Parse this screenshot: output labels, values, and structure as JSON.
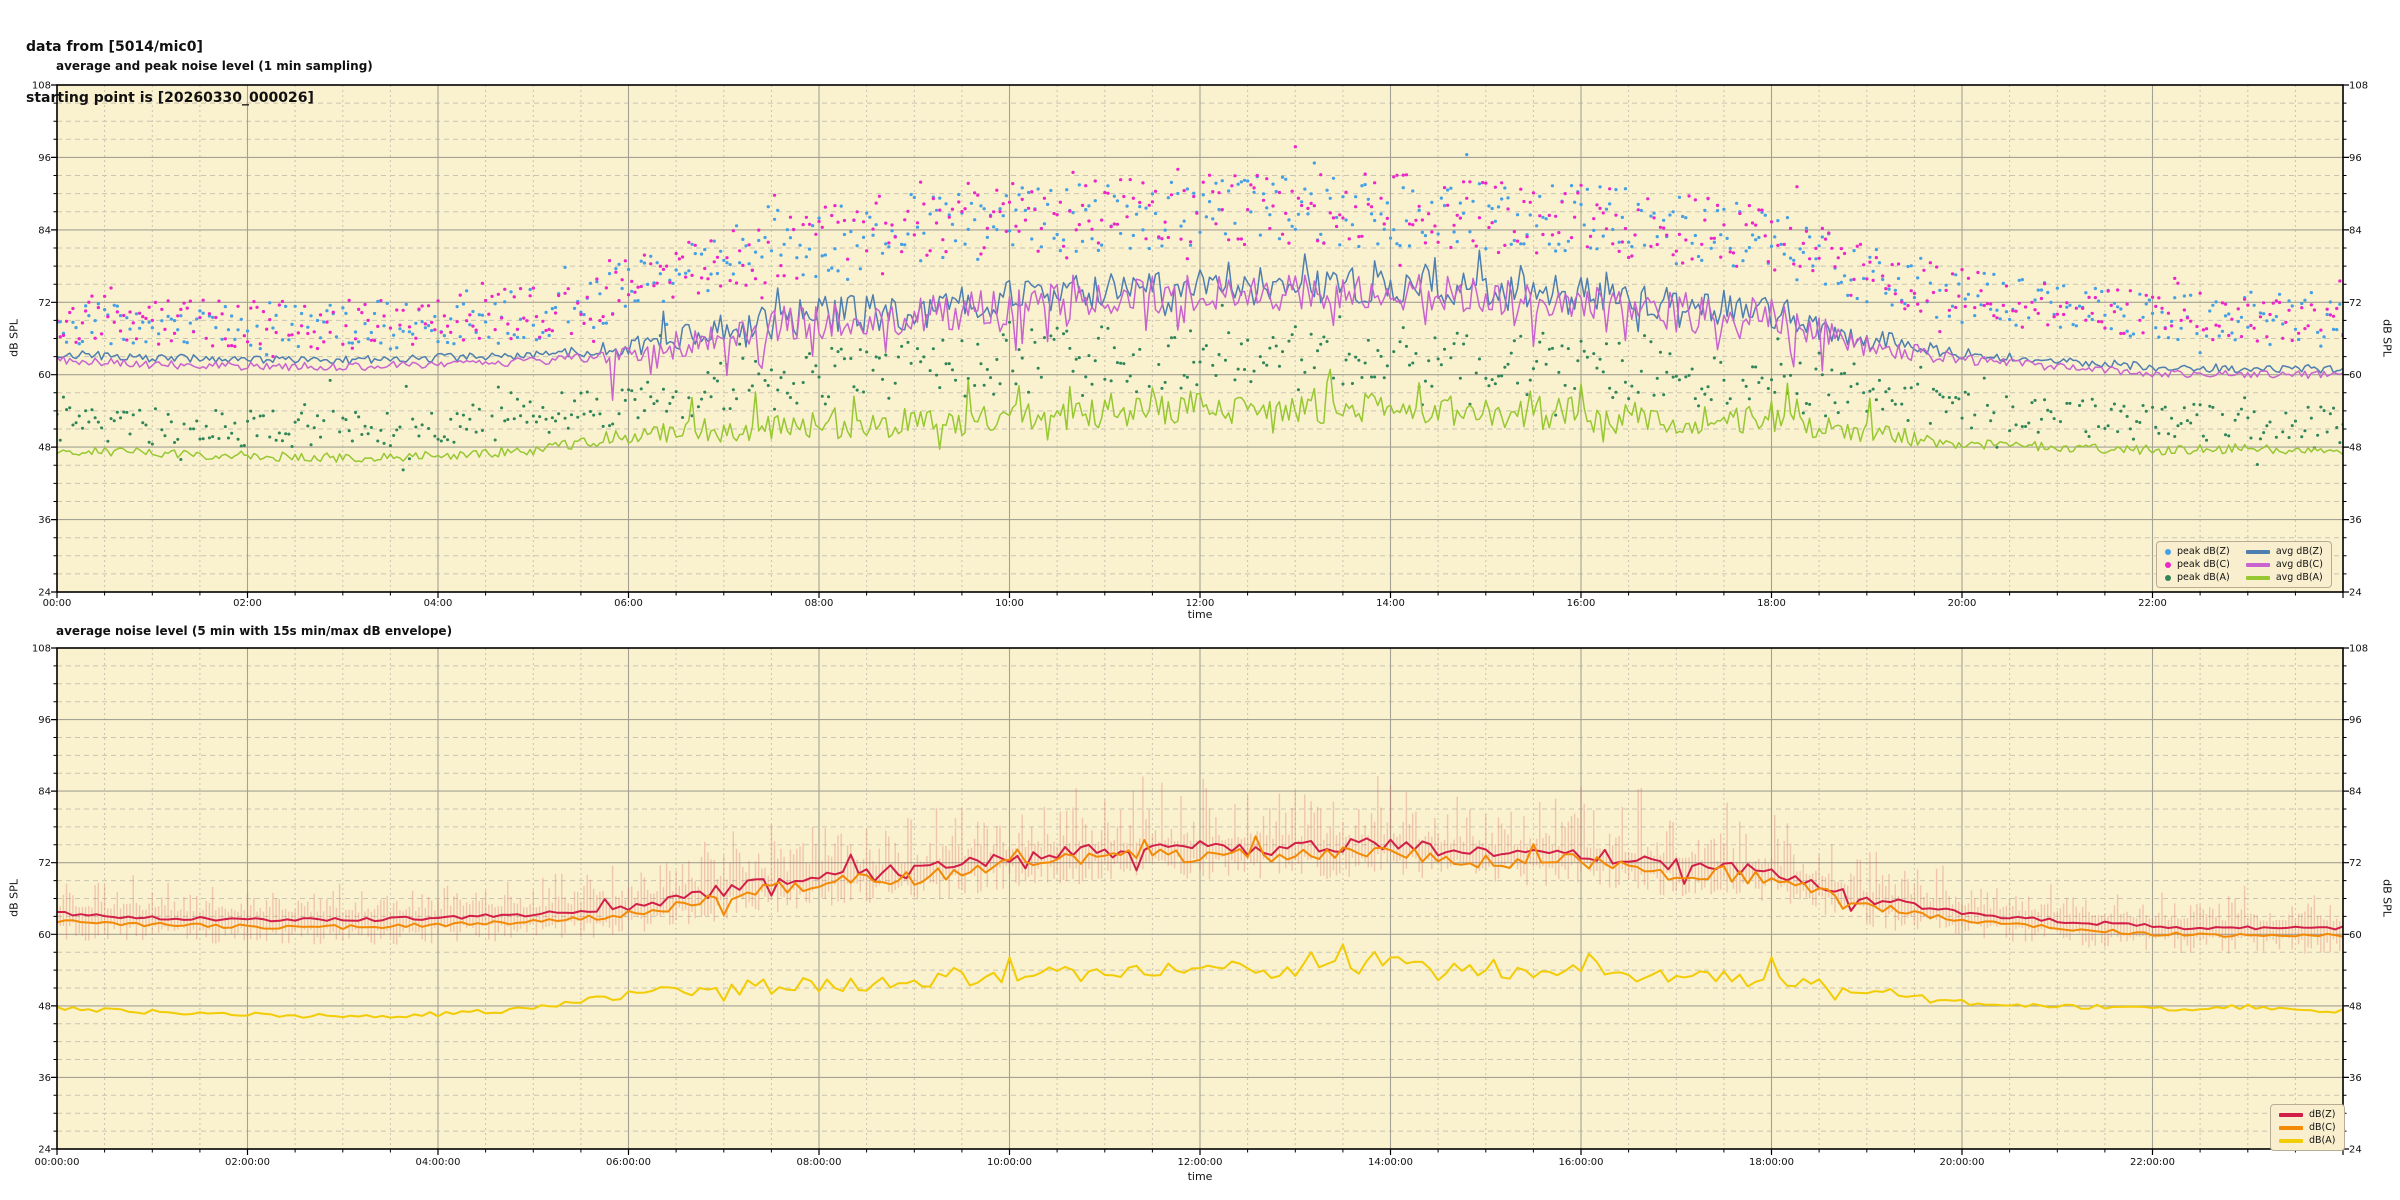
{
  "header": {
    "line1": "data from [5014/mic0]",
    "line2": "starting point is [20260330_000026]"
  },
  "style": {
    "plot_bg": "#FAF1CE",
    "grid_major": "#A5A295",
    "grid_minor": "#C9C4B2",
    "spine": "#000000",
    "tick_text": "#111111",
    "legend_bg": "#F9EFCF",
    "legend_border": "#b8ad93"
  },
  "chart_data": [
    {
      "type": "line+scatter",
      "title": "average and peak noise level (1 min sampling)",
      "xlabel": "time",
      "ylabel": "dB SPL",
      "ylim": [
        24,
        108
      ],
      "yticks": [
        24,
        36,
        48,
        60,
        72,
        84,
        96,
        108
      ],
      "y_minor_step": 3,
      "x_hours": 24,
      "x_major_hours": 2,
      "x_minor_hours": 0.5,
      "grid": "on",
      "legend_position": "lower right",
      "xtick_labels": [
        "00:00",
        "02:00",
        "04:00",
        "06:00",
        "08:00",
        "10:00",
        "12:00",
        "14:00",
        "16:00",
        "18:00",
        "20:00",
        "22:00"
      ],
      "legend": [
        {
          "label": "peak dB(Z)",
          "type": "dot",
          "color": "#45A0E6"
        },
        {
          "label": "peak dB(C)",
          "type": "dot",
          "color": "#EC26C8"
        },
        {
          "label": "peak dB(A)",
          "type": "dot",
          "color": "#2F8659"
        },
        {
          "label": "avg dB(Z)",
          "type": "line",
          "color": "#4E7FB0"
        },
        {
          "label": "avg dB(C)",
          "type": "line",
          "color": "#C863CF"
        },
        {
          "label": "avg dB(A)",
          "type": "line",
          "color": "#97C832"
        }
      ],
      "series": [
        {
          "name": "peak dB(Z)",
          "style": "scatter",
          "color": "#45A0E6",
          "step_min": 2,
          "density": 0.9,
          "size": 3.2,
          "hourly": [
            69.0,
            68.5,
            68.0,
            68.0,
            68.5,
            70.0,
            74.0,
            79.0,
            82.0,
            84.0,
            86.0,
            86.5,
            87.0,
            87.0,
            87.0,
            86.0,
            85.5,
            84.0,
            82.0,
            77.0,
            73.0,
            71.0,
            69.5,
            69.0,
            68.5
          ],
          "spread_hourly": [
            4,
            4,
            4,
            4,
            4,
            4.5,
            5,
            5.5,
            6,
            6,
            6,
            6,
            6,
            6,
            6,
            6,
            6,
            6,
            5.5,
            5,
            4.5,
            4,
            4,
            4,
            4
          ],
          "outlier_p": 0.06,
          "outlier_amp": 6
        },
        {
          "name": "peak dB(C)",
          "style": "scatter",
          "color": "#EC26C8",
          "step_min": 2,
          "density": 0.9,
          "size": 3.2,
          "hourly": [
            69.3,
            68.8,
            68.3,
            68.3,
            68.8,
            70.3,
            74.3,
            79.3,
            82.3,
            84.3,
            86.3,
            86.8,
            87.3,
            87.3,
            87.3,
            86.3,
            85.8,
            84.3,
            82.3,
            77.3,
            73.3,
            71.3,
            69.8,
            69.3,
            68.8
          ],
          "spread_hourly": [
            4,
            4,
            4,
            4,
            4,
            4.5,
            5,
            5.5,
            6,
            6,
            6,
            6,
            6,
            6,
            6,
            6,
            6,
            6,
            5.5,
            5,
            4.5,
            4,
            4,
            4,
            4
          ],
          "outlier_p": 0.06,
          "outlier_amp": 6
        },
        {
          "name": "peak dB(A)",
          "style": "scatter",
          "color": "#2F8659",
          "step_min": 2,
          "density": 0.9,
          "size": 3.0,
          "hourly": [
            52.0,
            51.5,
            51.0,
            51.0,
            51.5,
            53.0,
            56.0,
            58.0,
            59.5,
            60.5,
            62.0,
            62.5,
            63.0,
            63.0,
            63.0,
            62.0,
            61.5,
            60.0,
            58.5,
            56.0,
            54.0,
            53.0,
            52.2,
            52.0,
            51.7
          ],
          "spread_hourly": [
            3,
            3,
            3,
            3,
            3,
            3.5,
            4,
            4.5,
            5,
            5,
            5.5,
            5.5,
            5.5,
            5.5,
            5.5,
            5.5,
            5,
            5,
            4.5,
            4,
            3.5,
            3,
            3,
            3,
            3
          ],
          "outlier_p": 0.07,
          "outlier_amp": 7
        },
        {
          "name": "avg dB(Z)",
          "style": "line",
          "color": "#4E7FB0",
          "width": 1.5,
          "step_min": 2,
          "hourly": [
            63.5,
            62.8,
            62.5,
            62.4,
            62.8,
            63.3,
            64.5,
            67.5,
            70.0,
            70.5,
            73.0,
            74.0,
            74.5,
            74.5,
            75.0,
            73.5,
            73.5,
            71.5,
            70.5,
            66.0,
            63.5,
            62.3,
            61.3,
            61.0,
            61.0
          ],
          "amp_night": 0.7,
          "amp_day": 3.0,
          "spike_p": 0.06,
          "spike_amp": 4.0,
          "down_p": 0.05,
          "down_amp": 3.0
        },
        {
          "name": "avg dB(C)",
          "style": "line",
          "color": "#C863CF",
          "width": 1.5,
          "step_min": 2,
          "hourly": [
            62.4,
            61.7,
            61.4,
            61.3,
            61.7,
            62.2,
            63.5,
            66.5,
            69.0,
            69.5,
            72.0,
            73.0,
            73.5,
            73.5,
            74.0,
            72.5,
            72.5,
            70.5,
            69.5,
            65.0,
            62.5,
            61.3,
            60.3,
            60.0,
            60.0
          ],
          "amp_night": 0.7,
          "amp_day": 3.2,
          "spike_p": 0.04,
          "spike_amp": 3.5,
          "down_p": 0.18,
          "down_amp": 5.0
        },
        {
          "name": "avg dB(A)",
          "style": "line",
          "color": "#97C832",
          "width": 1.5,
          "step_min": 2,
          "hourly": [
            47.5,
            47.0,
            46.6,
            46.2,
            46.6,
            47.5,
            50.0,
            51.0,
            51.5,
            52.0,
            53.0,
            53.5,
            54.5,
            54.0,
            55.0,
            53.5,
            54.0,
            52.5,
            52.5,
            50.5,
            48.5,
            48.0,
            47.5,
            47.8,
            47.2
          ],
          "amp_night": 0.8,
          "amp_day": 2.4,
          "spike_p": 0.07,
          "spike_amp": 4.5,
          "down_p": 0.05,
          "down_amp": 2.5
        }
      ]
    },
    {
      "type": "line+envelope",
      "title": "average noise level (5 min with 15s min/max dB envelope)",
      "xlabel": "time",
      "ylabel": "dB SPL",
      "ylim": [
        24,
        108
      ],
      "yticks": [
        24,
        36,
        48,
        60,
        72,
        84,
        96,
        108
      ],
      "y_minor_step": 3,
      "x_hours": 24,
      "x_major_hours": 2,
      "x_minor_hours": 0.5,
      "grid": "on",
      "legend_position": "lower right",
      "xtick_labels": [
        "00:00:00",
        "02:00:00",
        "04:00:00",
        "06:00:00",
        "08:00:00",
        "10:00:00",
        "12:00:00",
        "14:00:00",
        "16:00:00",
        "18:00:00",
        "20:00:00",
        "22:00:00"
      ],
      "legend": [
        {
          "label": "dB(Z)",
          "type": "line",
          "color": "#D21F49"
        },
        {
          "label": "dB(C)",
          "type": "line",
          "color": "#F28A05"
        },
        {
          "label": "dB(A)",
          "type": "line",
          "color": "#F2CC05"
        }
      ],
      "envelope": {
        "of": "dB(Z)",
        "color": "rgba(214,99,89,0.30)",
        "step_min": 2,
        "up_hourly": [
          7,
          6,
          6,
          6,
          6,
          7,
          9,
          11,
          12,
          12,
          13,
          13,
          13,
          13,
          13,
          13,
          13,
          12,
          11,
          9,
          7,
          6,
          6,
          6,
          6
        ],
        "dn_hourly": [
          3,
          3,
          3,
          3,
          3,
          3,
          3.5,
          4,
          4,
          4,
          4,
          4,
          4,
          4,
          4,
          4,
          4,
          4,
          4,
          3.5,
          3,
          3,
          3,
          3,
          3
        ]
      },
      "series": [
        {
          "name": "dB(Z)",
          "style": "line",
          "color": "#D21F49",
          "width": 2.0,
          "step_min": 5,
          "hourly": [
            63.5,
            62.8,
            62.5,
            62.4,
            62.8,
            63.3,
            64.5,
            67.5,
            70.0,
            70.5,
            73.0,
            74.0,
            74.5,
            74.5,
            75.0,
            73.5,
            73.5,
            71.5,
            70.5,
            66.0,
            63.5,
            62.3,
            61.3,
            61.0,
            61.0
          ],
          "amp_night": 0.35,
          "amp_day": 1.2,
          "spike_p": 0.05,
          "spike_amp": 2.0,
          "down_p": 0.05,
          "down_amp": 2.0
        },
        {
          "name": "dB(C)",
          "style": "line",
          "color": "#F28A05",
          "width": 2.0,
          "step_min": 5,
          "hourly": [
            62.3,
            61.6,
            61.3,
            61.2,
            61.6,
            62.1,
            63.3,
            66.3,
            68.8,
            69.3,
            71.8,
            72.8,
            73.3,
            73.3,
            73.8,
            72.3,
            72.3,
            70.3,
            69.3,
            64.8,
            62.3,
            61.1,
            60.1,
            59.8,
            59.8
          ],
          "amp_night": 0.35,
          "amp_day": 1.2,
          "spike_p": 0.04,
          "spike_amp": 1.8,
          "down_p": 0.06,
          "down_amp": 2.0
        },
        {
          "name": "dB(A)",
          "style": "line",
          "color": "#F2CC05",
          "width": 2.0,
          "step_min": 5,
          "hourly": [
            47.5,
            47.0,
            46.6,
            46.2,
            46.6,
            47.5,
            50.0,
            51.0,
            51.5,
            52.0,
            53.0,
            53.5,
            54.5,
            54.0,
            55.0,
            53.5,
            54.0,
            52.5,
            52.5,
            50.5,
            48.5,
            48.0,
            47.5,
            47.8,
            47.2
          ],
          "amp_night": 0.4,
          "amp_day": 1.3,
          "spike_p": 0.06,
          "spike_amp": 2.5,
          "down_p": 0.05,
          "down_amp": 1.8
        }
      ]
    }
  ]
}
